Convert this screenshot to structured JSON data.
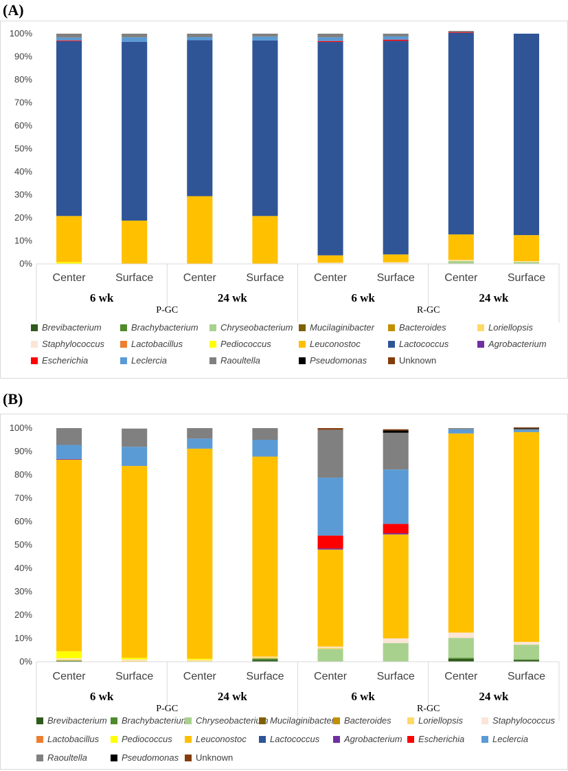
{
  "chart_data": [
    {
      "panel_label": "(A)",
      "type": "bar",
      "stacked": true,
      "ylim": [
        0,
        100
      ],
      "y_tick_labels": [
        "0%",
        "10%",
        "20%",
        "30%",
        "40%",
        "50%",
        "60%",
        "70%",
        "80%",
        "90%",
        "100%"
      ],
      "categories": [
        "Center",
        "Surface",
        "Center",
        "Surface",
        "Center",
        "Surface",
        "Center",
        "Surface"
      ],
      "time_labels": [
        "6 wk",
        "24 wk",
        "6 wk",
        "24 wk"
      ],
      "group_labels": [
        "P-GC",
        "R-GC"
      ],
      "legend_placement": "bottom",
      "series": [
        {
          "name": "Brevibacterium",
          "color": "#2e5a1c",
          "italic": true,
          "values": [
            0,
            0,
            0,
            0,
            0,
            0,
            0,
            0
          ]
        },
        {
          "name": "Brachybacterium",
          "color": "#4f8a2c",
          "italic": true,
          "values": [
            0,
            0,
            0,
            0,
            0,
            0,
            0,
            0
          ]
        },
        {
          "name": "Chryseobacterium",
          "color": "#a9d18e",
          "italic": true,
          "values": [
            0,
            0,
            0,
            0,
            0,
            0,
            1.2,
            0.8
          ]
        },
        {
          "name": "Mucilaginibacter",
          "color": "#7f6000",
          "italic": true,
          "values": [
            0,
            0,
            0,
            0,
            0,
            0,
            0,
            0
          ]
        },
        {
          "name": "Bacteroides",
          "color": "#c09000",
          "italic": true,
          "values": [
            0,
            0,
            0,
            0,
            0,
            0,
            0,
            0
          ]
        },
        {
          "name": "Loriellopsis",
          "color": "#ffd966",
          "italic": true,
          "values": [
            0,
            0,
            0,
            0,
            0.2,
            0.2,
            0.2,
            0.2
          ]
        },
        {
          "name": "Staphylococcus",
          "color": "#fbe5d6",
          "italic": true,
          "values": [
            0,
            0,
            0,
            0,
            0.3,
            0.5,
            0.3,
            0.2
          ]
        },
        {
          "name": "Lactobacillus",
          "color": "#ed7d31",
          "italic": true,
          "values": [
            0,
            0,
            0,
            0,
            0,
            0,
            0,
            0
          ]
        },
        {
          "name": "Pediococcus",
          "color": "#ffff00",
          "italic": true,
          "values": [
            0.8,
            0,
            0,
            0,
            0,
            0,
            0,
            0
          ]
        },
        {
          "name": "Leuconostoc",
          "color": "#ffc000",
          "italic": true,
          "values": [
            20,
            18.8,
            29.4,
            20.8,
            3.2,
            3.4,
            11.1,
            11.3
          ]
        },
        {
          "name": "Lactococcus",
          "color": "#2f5597",
          "italic": true,
          "values": [
            76,
            77.7,
            67.8,
            76.3,
            92.7,
            92.8,
            87.6,
            87.5
          ]
        },
        {
          "name": "Agrobacterium",
          "color": "#7030a0",
          "italic": true,
          "values": [
            0,
            0,
            0,
            0,
            0,
            0,
            0,
            0
          ]
        },
        {
          "name": "Escherichia",
          "color": "#ff0000",
          "italic": true,
          "values": [
            0.3,
            0,
            0,
            0,
            0.4,
            0.5,
            0.3,
            0
          ]
        },
        {
          "name": "Leclercia",
          "color": "#5b9bd5",
          "italic": true,
          "values": [
            1.2,
            1.9,
            1.3,
            1.6,
            1.6,
            1.4,
            0,
            0
          ]
        },
        {
          "name": "Raoultella",
          "color": "#808080",
          "italic": true,
          "values": [
            1.7,
            1.6,
            1.5,
            1.3,
            1.6,
            1.2,
            0.5,
            0
          ]
        },
        {
          "name": "Pseudomonas",
          "color": "#000000",
          "italic": true,
          "values": [
            0,
            0,
            0,
            0,
            0,
            0,
            0,
            0
          ]
        },
        {
          "name": "Unknown",
          "color": "#843c0c",
          "italic": false,
          "values": [
            0,
            0,
            0,
            0,
            0,
            0,
            0,
            0
          ]
        }
      ]
    },
    {
      "panel_label": "(B)",
      "type": "bar",
      "stacked": true,
      "ylim": [
        0,
        100
      ],
      "y_tick_labels": [
        "0%",
        "10%",
        "20%",
        "30%",
        "40%",
        "50%",
        "60%",
        "70%",
        "80%",
        "90%",
        "100%"
      ],
      "categories": [
        "Center",
        "Surface",
        "Center",
        "Surface",
        "Center",
        "Surface",
        "Center",
        "Surface"
      ],
      "time_labels": [
        "6 wk",
        "24 wk",
        "6 wk",
        "24 wk"
      ],
      "group_labels": [
        "P-GC",
        "R-GC"
      ],
      "legend_placement": "bottom",
      "series": [
        {
          "name": "Brevibacterium",
          "color": "#2e5a1c",
          "italic": true,
          "values": [
            0.3,
            0,
            0,
            0.8,
            0,
            0,
            1.2,
            0.7
          ]
        },
        {
          "name": "Brachybacterium",
          "color": "#4f8a2c",
          "italic": true,
          "values": [
            0.2,
            0,
            0,
            0.6,
            0,
            0,
            0.5,
            0.3
          ]
        },
        {
          "name": "Chryseobacterium",
          "color": "#a9d18e",
          "italic": true,
          "values": [
            0,
            0,
            0,
            0,
            5.5,
            8,
            8.5,
            6.3
          ]
        },
        {
          "name": "Mucilaginibacter",
          "color": "#7f6000",
          "italic": true,
          "values": [
            0,
            0,
            0,
            0,
            0,
            0,
            0,
            0
          ]
        },
        {
          "name": "Bacteroides",
          "color": "#c09000",
          "italic": true,
          "values": [
            0,
            0,
            0,
            0,
            0,
            0,
            0,
            0
          ]
        },
        {
          "name": "Loriellopsis",
          "color": "#ffd966",
          "italic": true,
          "values": [
            0.5,
            0.5,
            0.5,
            0.6,
            0.5,
            0,
            0,
            0
          ]
        },
        {
          "name": "Staphylococcus",
          "color": "#fbe5d6",
          "italic": true,
          "values": [
            0.5,
            0.5,
            0.3,
            0.2,
            0.5,
            2,
            2.3,
            1.2
          ]
        },
        {
          "name": "Lactobacillus",
          "color": "#ed7d31",
          "italic": true,
          "values": [
            0,
            0,
            0,
            0,
            0,
            0,
            0,
            0
          ]
        },
        {
          "name": "Pediococcus",
          "color": "#ffff00",
          "italic": true,
          "values": [
            3,
            0.7,
            0.5,
            0,
            0,
            0,
            0,
            0
          ]
        },
        {
          "name": "Leuconostoc",
          "color": "#ffc000",
          "italic": true,
          "values": [
            82,
            82.1,
            89.9,
            85.6,
            41.5,
            44.5,
            85.2,
            89.8
          ]
        },
        {
          "name": "Lactococcus",
          "color": "#2f5597",
          "italic": true,
          "values": [
            0,
            0,
            0,
            0,
            0,
            0,
            0,
            0
          ]
        },
        {
          "name": "Agrobacterium",
          "color": "#7030a0",
          "italic": true,
          "values": [
            0.3,
            0,
            0,
            0,
            0.5,
            0.5,
            0,
            0
          ]
        },
        {
          "name": "Escherichia",
          "color": "#ff0000",
          "italic": true,
          "values": [
            0,
            0,
            0,
            0,
            5.5,
            4,
            0,
            0
          ]
        },
        {
          "name": "Leclercia",
          "color": "#5b9bd5",
          "italic": true,
          "values": [
            6,
            8.2,
            4.3,
            7.2,
            24.8,
            23.3,
            1.8,
            1
          ]
        },
        {
          "name": "Raoultella",
          "color": "#808080",
          "italic": true,
          "values": [
            7.2,
            7.8,
            4.5,
            5,
            20.5,
            15.7,
            0.5,
            0.3
          ]
        },
        {
          "name": "Pseudomonas",
          "color": "#000000",
          "italic": true,
          "values": [
            0,
            0,
            0,
            0,
            0,
            1,
            0,
            0.3
          ]
        },
        {
          "name": "Unknown",
          "color": "#843c0c",
          "italic": false,
          "values": [
            0,
            0,
            0,
            0,
            0.7,
            0.5,
            0,
            0.4
          ]
        }
      ]
    }
  ]
}
